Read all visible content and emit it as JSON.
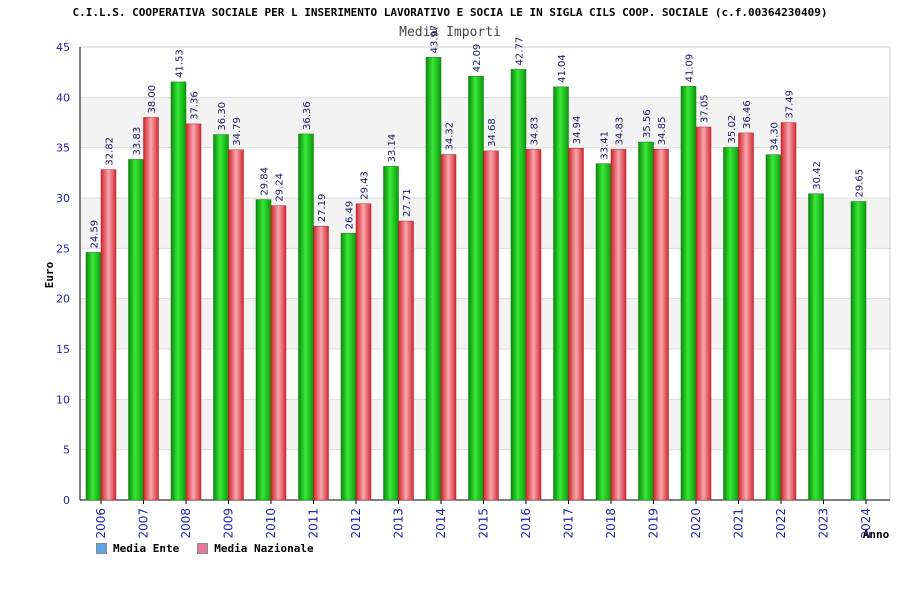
{
  "chart_data": {
    "type": "bar",
    "title": "C.I.L.S. COOPERATIVA SOCIALE PER L INSERIMENTO LAVORATIVO E SOCIA LE IN SIGLA CILS COOP. SOCIALE (c.f.00364230409)",
    "subtitle": "Media Importi",
    "xlabel": "Anno",
    "ylabel": "Euro",
    "ylim": [
      0,
      45
    ],
    "yticks": [
      "0",
      "5",
      "10",
      "15",
      "20",
      "25",
      "30",
      "35",
      "40",
      "45"
    ],
    "categories": [
      "2006",
      "2007",
      "2008",
      "2009",
      "2010",
      "2011",
      "2012",
      "2013",
      "2014",
      "2015",
      "2016",
      "2017",
      "2018",
      "2019",
      "2020",
      "2021",
      "2022",
      "2023",
      "2024"
    ],
    "series": [
      {
        "name": "Media Ente",
        "color": "#1fc51f",
        "legend_color": "#5ba3e6",
        "values": [
          24.59,
          33.83,
          41.53,
          36.3,
          29.84,
          36.36,
          26.49,
          33.14,
          43.97,
          42.09,
          42.77,
          41.04,
          33.41,
          35.56,
          41.09,
          35.02,
          34.3,
          30.42,
          29.65
        ],
        "labels": [
          "24.59",
          "33.83",
          "41.53",
          "36.30",
          "29.84",
          "36.36",
          "26.49",
          "33.14",
          "43.97",
          "42.09",
          "42.77",
          "41.04",
          "33.41",
          "35.56",
          "41.09",
          "35.02",
          "34.30",
          "30.42",
          "29.65"
        ]
      },
      {
        "name": "Media Nazionale",
        "color": "#e8444e",
        "legend_color": "#e07aa0",
        "values": [
          32.82,
          38.0,
          37.36,
          34.79,
          29.24,
          27.19,
          29.43,
          27.71,
          34.32,
          34.68,
          34.83,
          34.94,
          34.83,
          34.85,
          37.05,
          36.46,
          37.49,
          null,
          null
        ],
        "labels": [
          "32.82",
          "38.00",
          "37.36",
          "34.79",
          "29.24",
          "27.19",
          "29.43",
          "27.71",
          "34.32",
          "34.68",
          "34.83",
          "34.94",
          "34.83",
          "34.85",
          "37.05",
          "36.46",
          "37.49",
          null,
          null
        ]
      }
    ],
    "grid": true,
    "legend_position": "bottom-left"
  }
}
